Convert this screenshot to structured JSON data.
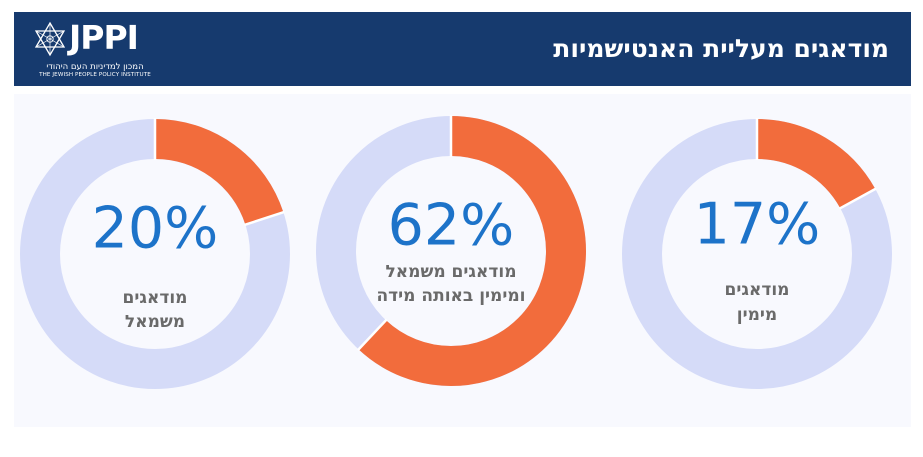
{
  "header": {
    "title": "מודאגים מעליית האנטישמיות",
    "logo_text": "JPPI",
    "logo_subtitle_he": "המכון למדיניות העם היהודי",
    "logo_subtitle_en": "THE JEWISH PEOPLE POLICY INSTITUTE"
  },
  "colors": {
    "header_bg": "#163a6e",
    "accent": "#f26c3c",
    "track": "#d5dbf8",
    "percent_text": "#1d73c9",
    "label_text": "#6a6a6a"
  },
  "chart_data": {
    "type": "pie",
    "charts": [
      {
        "value": 20,
        "label": "20%",
        "caption": [
          "מודאגים",
          "משמאל"
        ]
      },
      {
        "value": 62,
        "label": "62%",
        "caption": [
          "מודאגים משמאל",
          "ומימין באותה מידה"
        ]
      },
      {
        "value": 17,
        "label": "17%",
        "caption": [
          "מודאגים",
          "מימין"
        ]
      }
    ]
  }
}
